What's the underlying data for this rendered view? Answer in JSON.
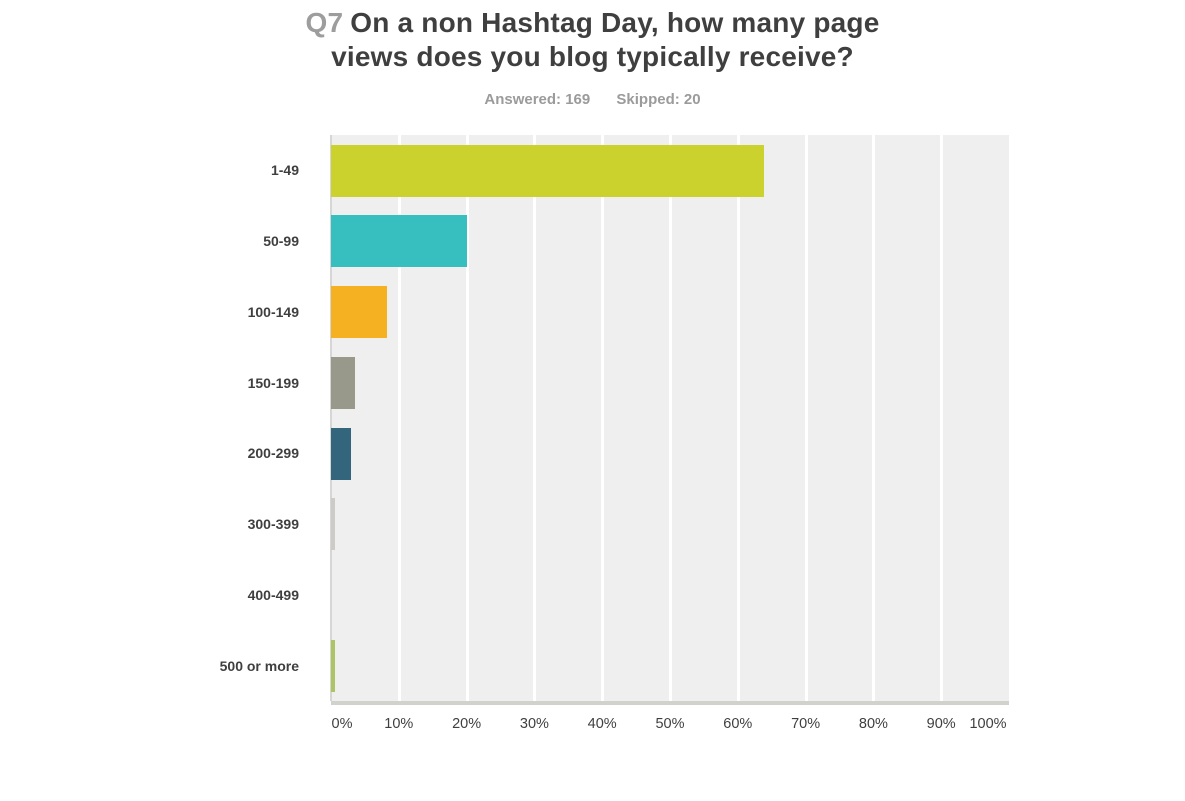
{
  "header": {
    "question_number": "Q7",
    "title_line1": "On a non Hashtag Day, how many page",
    "title_line2": "views does you blog typically receive?",
    "answered": "Answered: 169",
    "skipped": "Skipped: 20"
  },
  "chart_data": {
    "type": "bar",
    "orientation": "horizontal",
    "title": "Q7 On a non Hashtag Day, how many page views does you blog typically receive?",
    "answered": 169,
    "skipped": 20,
    "categories": [
      "1-49",
      "50-99",
      "100-149",
      "150-199",
      "200-299",
      "300-399",
      "400-499",
      "500 or more"
    ],
    "values": [
      63.91,
      20.12,
      8.28,
      3.55,
      2.96,
      0.59,
      0,
      0.59
    ],
    "x_ticks": [
      "0%",
      "10%",
      "20%",
      "30%",
      "40%",
      "50%",
      "60%",
      "70%",
      "80%",
      "90%",
      "100%"
    ],
    "xlim": [
      0,
      100
    ],
    "bar_colors": [
      "#cbd22d",
      "#37bebe",
      "#f5b122",
      "#98988b",
      "#33657c",
      "#cccbc7",
      "#cccbc7",
      "#adc465"
    ],
    "grid": true,
    "legend": false,
    "plot_bg": "#f0efef",
    "gridline_color": "#ffffff",
    "axis_line_color": "#d6d6d6",
    "axis_band_color": "#d2d2cd",
    "text_color": "#3f3f3f",
    "muted_color": "#9b9b9b"
  }
}
